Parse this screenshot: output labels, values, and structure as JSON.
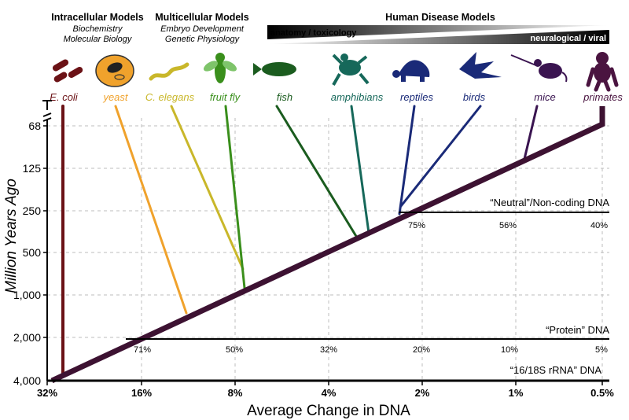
{
  "chart_data": {
    "type": "line",
    "xlabel": "Average Change in DNA",
    "ylabel": "Million Years Ago",
    "x_ticks": [
      "32%",
      "16%",
      "8%",
      "4%",
      "2%",
      "1%",
      "0.5%"
    ],
    "y_ticks": [
      "68",
      "125",
      "250",
      "500",
      "1,000",
      "2,000",
      "4,000"
    ],
    "categories": {
      "intracellular": {
        "title": "Intracellular Models",
        "subtitle": [
          "Biochemistry",
          "Molecular Biology"
        ]
      },
      "multicellular": {
        "title": "Multicellular Models",
        "subtitle": [
          "Embryo Development",
          "Genetic Physiology"
        ]
      },
      "human": {
        "title": "Human Disease Models"
      }
    },
    "gradients": {
      "anatomy": "anatomy / toxicology",
      "neuro": "neuralogical / viral"
    },
    "organisms": [
      {
        "name": "E. coli",
        "icon": "bacteria-icon",
        "color": "#6b1216",
        "branch_mya": 4000
      },
      {
        "name": "yeast",
        "icon": "yeast-icon",
        "color": "#f0a22c",
        "branch_mya": 1500
      },
      {
        "name": "C. elegans",
        "icon": "worm-icon",
        "color": "#c9b72a",
        "branch_mya": 900
      },
      {
        "name": "fruit fly",
        "icon": "fly-icon",
        "color": "#3a8f1c",
        "branch_mya": 900
      },
      {
        "name": "fish",
        "icon": "fish-icon",
        "color": "#1b5c1f",
        "branch_mya": 450
      },
      {
        "name": "amphibians",
        "icon": "frog-icon",
        "color": "#16685a",
        "branch_mya": 350
      },
      {
        "name": "reptiles",
        "icon": "turtle-icon",
        "color": "#1a2a78",
        "branch_mya": 300
      },
      {
        "name": "birds",
        "icon": "bird-icon",
        "color": "#1a2a78",
        "branch_mya": 300
      },
      {
        "name": "mice",
        "icon": "mouse-icon",
        "color": "#3a1450",
        "branch_mya": 100
      },
      {
        "name": "primates",
        "icon": "primate-icon",
        "color": "#4a1440",
        "branch_mya": 60
      }
    ],
    "scales": [
      {
        "label": "“Neutral”/Non-coding DNA",
        "ticks": [
          "75%",
          "56%",
          "40%"
        ]
      },
      {
        "label": "“Protein” DNA",
        "ticks": [
          "71%",
          "50%",
          "32%",
          "20%",
          "10%",
          "5%"
        ]
      },
      {
        "label": "“16/18S rRNA” DNA",
        "ticks": []
      }
    ],
    "grid": true
  },
  "colors": {
    "trunk": "#3d1232",
    "axis": "#000000",
    "grid": "#bdbdbd"
  }
}
